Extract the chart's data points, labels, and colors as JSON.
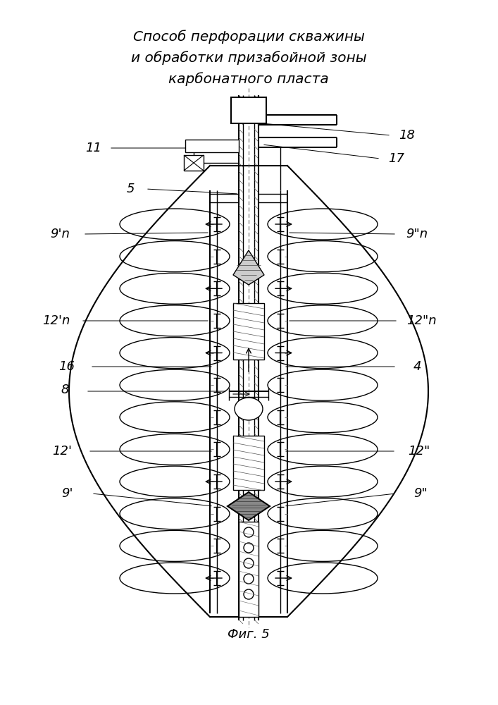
{
  "title_line1": "Способ перфорации скважины",
  "title_line2": "и обработки призабойной зоны",
  "title_line3": "карбонатного пласта",
  "fig_label": "Фиг. 5",
  "bg_color": "#ffffff",
  "line_color": "#000000"
}
